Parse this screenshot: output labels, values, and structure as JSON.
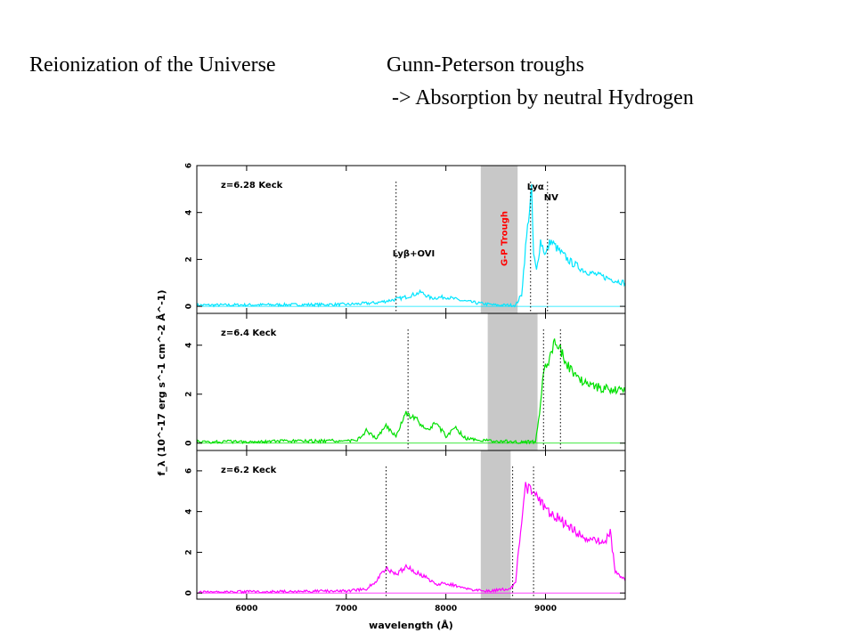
{
  "slide": {
    "title_left": "Reionization of the Universe",
    "title_right": "Gunn-Peterson troughs",
    "subtitle": "-> Absorption by neutral Hydrogen"
  },
  "chart_data": {
    "type": "line",
    "xlabel": "wavelength (Å)",
    "ylabel": "f_λ (10^-17 erg s^-1 cm^-2 Å^-1)",
    "xlim": [
      5500,
      9800
    ],
    "x_ticks": [
      6000,
      7000,
      8000,
      9000
    ],
    "panels": [
      {
        "label": "z=6.28 Keck",
        "color": "#00e5ff",
        "ylim": [
          -0.3,
          6
        ],
        "y_ticks": [
          0,
          2,
          4,
          6
        ],
        "trough": [
          8350,
          8720
        ],
        "trough_label": "G-P Trough",
        "trough_label_color": "#ff0000",
        "marker_lines": [
          7500,
          8850,
          9020
        ],
        "line_labels": [
          {
            "text": "Lyβ+OVI",
            "x": 7500
          },
          {
            "text": "Lyα",
            "x": 8850
          },
          {
            "text": "NV",
            "x": 9020
          }
        ],
        "spectrum": [
          [
            5500,
            0.05
          ],
          [
            7000,
            0.08
          ],
          [
            7300,
            0.15
          ],
          [
            7500,
            0.3
          ],
          [
            7600,
            0.4
          ],
          [
            7750,
            0.6
          ],
          [
            7850,
            0.35
          ],
          [
            8000,
            0.4
          ],
          [
            8150,
            0.25
          ],
          [
            8300,
            0.15
          ],
          [
            8500,
            0.05
          ],
          [
            8700,
            0.05
          ],
          [
            8760,
            0.5
          ],
          [
            8800,
            2.5
          ],
          [
            8830,
            3.8
          ],
          [
            8860,
            4.9
          ],
          [
            8880,
            2.2
          ],
          [
            8910,
            1.5
          ],
          [
            8950,
            2.8
          ],
          [
            9000,
            2.2
          ],
          [
            9050,
            2.8
          ],
          [
            9150,
            2.3
          ],
          [
            9250,
            1.9
          ],
          [
            9400,
            1.5
          ],
          [
            9550,
            1.3
          ],
          [
            9700,
            1.1
          ],
          [
            9800,
            1.0
          ]
        ]
      },
      {
        "label": "z=6.4 Keck",
        "color": "#00e000",
        "ylim": [
          -0.3,
          5.3
        ],
        "y_ticks": [
          0,
          2,
          4
        ],
        "trough": [
          8420,
          8920
        ],
        "marker_lines": [
          7620,
          8980,
          9150
        ],
        "spectrum": [
          [
            5500,
            0.05
          ],
          [
            7100,
            0.1
          ],
          [
            7200,
            0.5
          ],
          [
            7300,
            0.2
          ],
          [
            7400,
            0.7
          ],
          [
            7500,
            0.3
          ],
          [
            7600,
            1.2
          ],
          [
            7700,
            1.0
          ],
          [
            7800,
            0.5
          ],
          [
            7900,
            0.8
          ],
          [
            8000,
            0.3
          ],
          [
            8100,
            0.6
          ],
          [
            8200,
            0.2
          ],
          [
            8400,
            0.1
          ],
          [
            8700,
            0.05
          ],
          [
            8900,
            0.05
          ],
          [
            8950,
            1.5
          ],
          [
            8980,
            3.0
          ],
          [
            9050,
            3.6
          ],
          [
            9080,
            4.1
          ],
          [
            9150,
            3.8
          ],
          [
            9250,
            3.0
          ],
          [
            9350,
            2.6
          ],
          [
            9500,
            2.3
          ],
          [
            9650,
            2.2
          ],
          [
            9800,
            2.1
          ]
        ]
      },
      {
        "label": "z=6.2 Keck",
        "color": "#ff00ff",
        "ylim": [
          -0.3,
          7
        ],
        "y_ticks": [
          0,
          2,
          4,
          6
        ],
        "trough": [
          8350,
          8650
        ],
        "marker_lines": [
          7400,
          8670,
          8880
        ],
        "spectrum": [
          [
            5500,
            0.05
          ],
          [
            7000,
            0.1
          ],
          [
            7200,
            0.2
          ],
          [
            7300,
            0.6
          ],
          [
            7400,
            1.2
          ],
          [
            7500,
            0.9
          ],
          [
            7600,
            1.3
          ],
          [
            7700,
            1.0
          ],
          [
            7800,
            0.8
          ],
          [
            7900,
            0.4
          ],
          [
            8000,
            0.5
          ],
          [
            8200,
            0.2
          ],
          [
            8400,
            0.1
          ],
          [
            8650,
            0.2
          ],
          [
            8700,
            0.6
          ],
          [
            8750,
            3.0
          ],
          [
            8800,
            5.2
          ],
          [
            8900,
            4.9
          ],
          [
            9000,
            4.1
          ],
          [
            9100,
            3.8
          ],
          [
            9200,
            3.4
          ],
          [
            9350,
            2.9
          ],
          [
            9450,
            2.6
          ],
          [
            9600,
            2.5
          ],
          [
            9650,
            3.0
          ],
          [
            9700,
            1.0
          ],
          [
            9800,
            0.6
          ]
        ]
      }
    ]
  }
}
